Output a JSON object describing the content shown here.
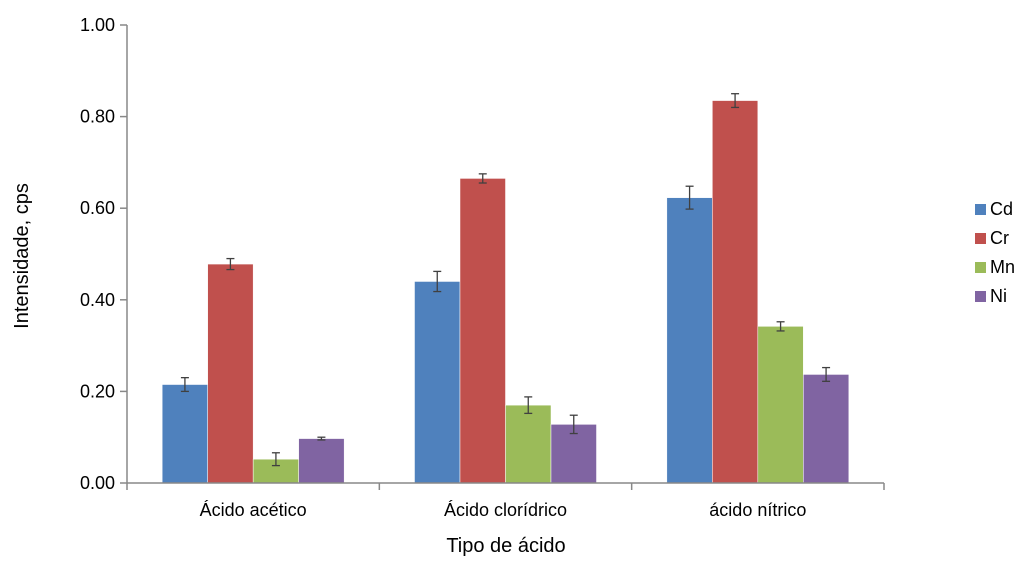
{
  "chart_data": {
    "type": "bar",
    "xlabel": "Tipo de ácido",
    "ylabel": "Intensidade, cps",
    "ylim": [
      0,
      1.0
    ],
    "yticks": [
      "0.00",
      "0.20",
      "0.40",
      "0.60",
      "0.80",
      "1.00"
    ],
    "categories": [
      "Ácido acético",
      "Ácido clorídrico",
      "ácido nítrico"
    ],
    "grid": false,
    "legend_position": "right",
    "series": [
      {
        "name": "Cd",
        "color": "#4F81BD",
        "values": [
          0.215,
          0.44,
          0.623
        ],
        "errors": [
          0.015,
          0.022,
          0.025
        ]
      },
      {
        "name": "Cr",
        "color": "#C0504D",
        "values": [
          0.478,
          0.665,
          0.835
        ],
        "errors": [
          0.012,
          0.01,
          0.015
        ]
      },
      {
        "name": "Mn",
        "color": "#9BBB59",
        "values": [
          0.052,
          0.17,
          0.342
        ],
        "errors": [
          0.014,
          0.018,
          0.01
        ]
      },
      {
        "name": "Ni",
        "color": "#8064A2",
        "values": [
          0.097,
          0.128,
          0.237
        ],
        "errors": [
          0.003,
          0.02,
          0.015
        ]
      }
    ]
  }
}
